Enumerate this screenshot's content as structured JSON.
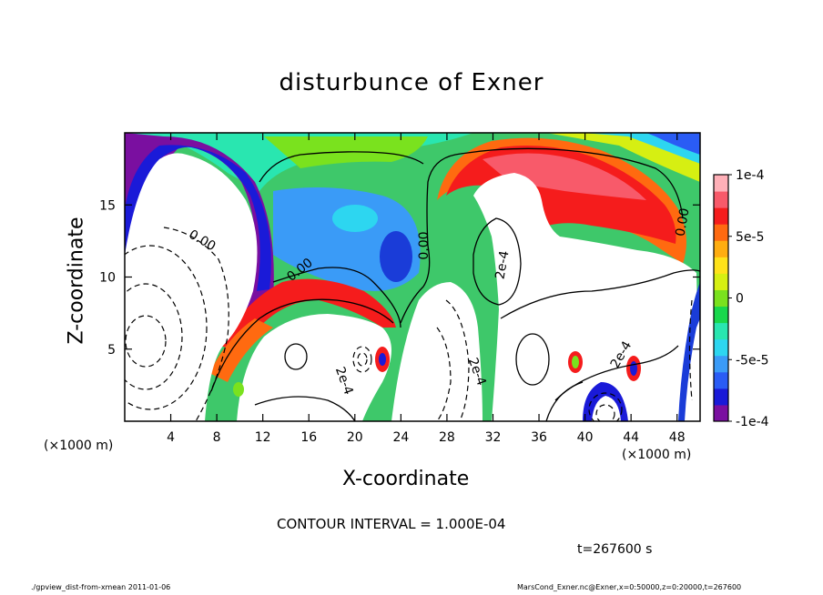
{
  "chart_data": {
    "type": "heatmap",
    "title": "disturbunce of Exner",
    "xlabel": "X-coordinate",
    "ylabel": "Z-coordinate",
    "x_unit": "(×1000 m)",
    "y_unit": "(×1000 m)",
    "xlim": [
      0,
      50
    ],
    "ylim": [
      0,
      20
    ],
    "x_ticks": [
      "4",
      "8",
      "12",
      "16",
      "20",
      "24",
      "28",
      "32",
      "36",
      "40",
      "44",
      "48"
    ],
    "y_ticks": [
      "5",
      "10",
      "15"
    ],
    "colorbar": {
      "range": [
        -0.0001,
        0.0001
      ],
      "tick_labels": [
        "1e-4",
        "5e-5",
        "0",
        "-5e-5",
        "-1e-4"
      ],
      "tick_values": [
        0.0001,
        5e-05,
        0,
        -5e-05,
        -0.0001
      ],
      "colors": [
        "#7a0fa0",
        "#1a1ad8",
        "#2a5cf5",
        "#3a9bf7",
        "#2dd6f0",
        "#29e6b0",
        "#19d84c",
        "#7ae21e",
        "#d6ef12",
        "#ffe21a",
        "#ffad10",
        "#ff6a10",
        "#f51c1c",
        "#f85a6a",
        "#ffb0b8"
      ]
    },
    "contour_labels": [
      "0.00",
      "0.00",
      "0.00",
      "0.00",
      "2e-4",
      "2e-4",
      "2e-4",
      "2e-4",
      "2e-4",
      "2e-4"
    ],
    "contour_interval_text": "CONTOUR INTERVAL =  1.000E-04",
    "time_text": "t=267600 s"
  },
  "footer": {
    "left": "./gpview_dist-from-xmean  2011-01-06",
    "right": "MarsCond_Exner.nc@Exner,x=0:50000,z=0:20000,t=267600"
  }
}
